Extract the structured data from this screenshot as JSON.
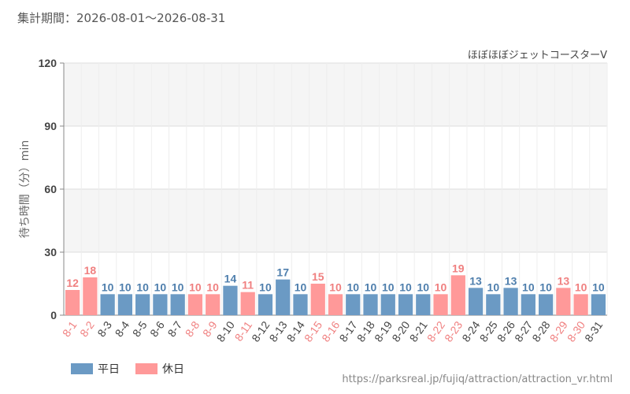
{
  "header": {
    "period_label": "集計期間：2026-08-01～2026-08-31"
  },
  "footer": {
    "source_url": "https://parksreal.jp/fujiq/attraction/attraction_vr.html"
  },
  "chart_data": {
    "type": "bar",
    "title": "ほぼほぼジェットコースターV",
    "ylabel": "待ち時間（分）min",
    "xlabel": "",
    "ylim": [
      0,
      120
    ],
    "yticks": [
      0,
      30,
      60,
      90,
      120
    ],
    "categories": [
      "8-1",
      "8-2",
      "8-3",
      "8-4",
      "8-5",
      "8-6",
      "8-7",
      "8-8",
      "8-9",
      "8-10",
      "8-11",
      "8-12",
      "8-13",
      "8-14",
      "8-15",
      "8-16",
      "8-17",
      "8-18",
      "8-19",
      "8-20",
      "8-21",
      "8-22",
      "8-23",
      "8-24",
      "8-25",
      "8-26",
      "8-27",
      "8-28",
      "8-29",
      "8-30",
      "8-31"
    ],
    "values": [
      12,
      18,
      10,
      10,
      10,
      10,
      10,
      10,
      10,
      14,
      11,
      10,
      17,
      10,
      15,
      10,
      10,
      10,
      10,
      10,
      10,
      10,
      19,
      13,
      10,
      13,
      10,
      10,
      13,
      10,
      10
    ],
    "day_type": [
      "holiday",
      "holiday",
      "weekday",
      "weekday",
      "weekday",
      "weekday",
      "weekday",
      "holiday",
      "holiday",
      "weekday",
      "holiday",
      "weekday",
      "weekday",
      "weekday",
      "holiday",
      "holiday",
      "weekday",
      "weekday",
      "weekday",
      "weekday",
      "weekday",
      "holiday",
      "holiday",
      "weekday",
      "weekday",
      "weekday",
      "weekday",
      "weekday",
      "holiday",
      "holiday",
      "weekday"
    ],
    "legend": [
      {
        "key": "weekday",
        "label": "平日",
        "color": "#6b9ac4"
      },
      {
        "key": "holiday",
        "label": "休日",
        "color": "#ff9999"
      }
    ],
    "colors": {
      "weekday_bar": "#6b9ac4",
      "holiday_bar": "#ff9999",
      "weekday_text": "#4f7fad",
      "holiday_text": "#f08080",
      "band": "#f5f5f5",
      "grid": "#dddddd"
    },
    "legend_position": "bottom-left",
    "grid": true
  }
}
